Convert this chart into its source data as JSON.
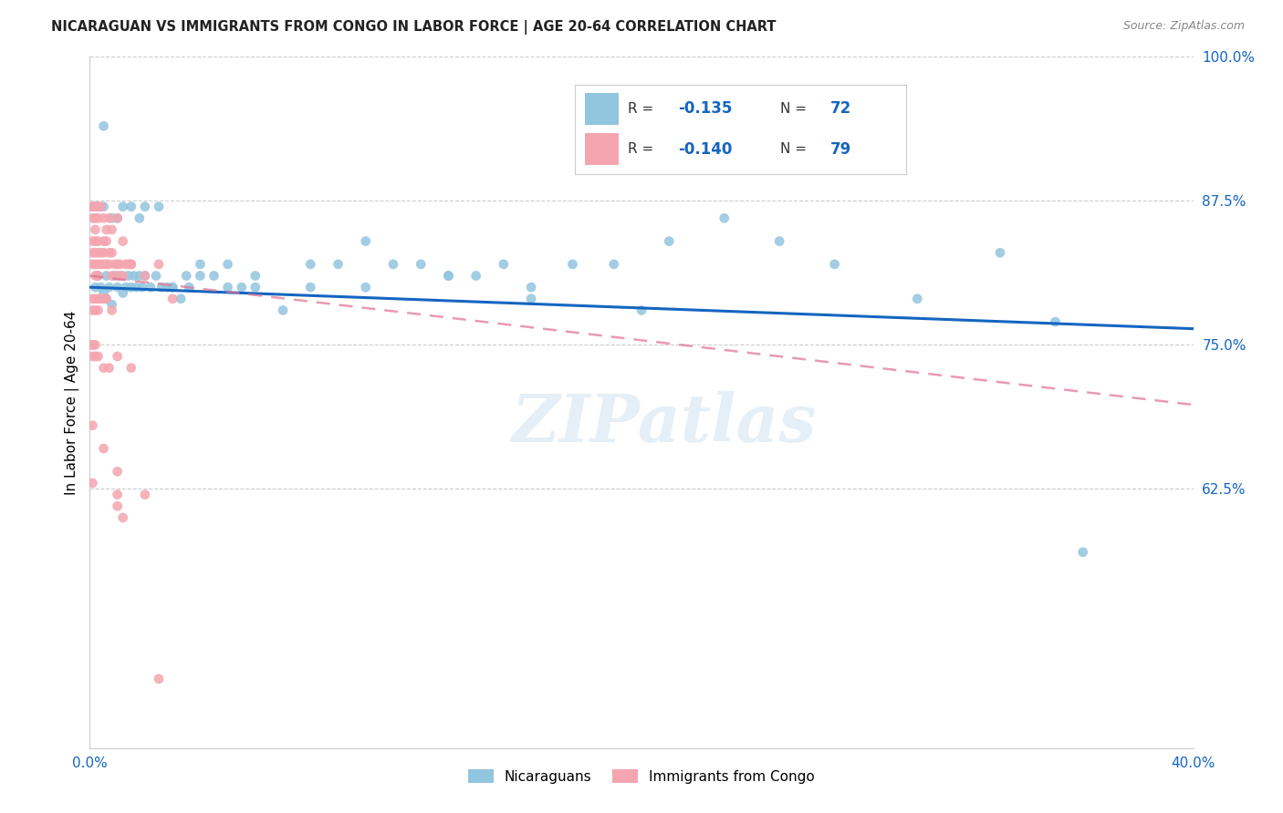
{
  "title": "NICARAGUAN VS IMMIGRANTS FROM CONGO IN LABOR FORCE | AGE 20-64 CORRELATION CHART",
  "source": "Source: ZipAtlas.com",
  "ylabel": "In Labor Force | Age 20-64",
  "xlim": [
    0.0,
    0.4
  ],
  "ylim": [
    0.4,
    1.0
  ],
  "blue_color": "#92c5de",
  "pink_color": "#f4a5b0",
  "trend_blue": "#1565c0",
  "trend_pink": "#e07090",
  "legend_R1": "-0.135",
  "legend_N1": "72",
  "legend_R2": "-0.140",
  "legend_N2": "79",
  "watermark": "ZIPatlas",
  "blue_trend_x": [
    0.0,
    0.4
  ],
  "blue_trend_y": [
    0.8,
    0.764
  ],
  "pink_trend_x": [
    0.0,
    0.4
  ],
  "pink_trend_y": [
    0.81,
    0.698
  ],
  "blue_x": [
    0.002,
    0.003,
    0.004,
    0.005,
    0.006,
    0.006,
    0.007,
    0.008,
    0.009,
    0.01,
    0.011,
    0.012,
    0.013,
    0.014,
    0.015,
    0.016,
    0.017,
    0.018,
    0.019,
    0.02,
    0.022,
    0.024,
    0.026,
    0.028,
    0.03,
    0.033,
    0.036,
    0.04,
    0.045,
    0.05,
    0.055,
    0.06,
    0.07,
    0.08,
    0.09,
    0.1,
    0.11,
    0.12,
    0.13,
    0.14,
    0.15,
    0.16,
    0.175,
    0.19,
    0.21,
    0.23,
    0.25,
    0.27,
    0.3,
    0.33,
    0.003,
    0.005,
    0.008,
    0.01,
    0.012,
    0.015,
    0.018,
    0.02,
    0.025,
    0.03,
    0.035,
    0.04,
    0.05,
    0.06,
    0.08,
    0.1,
    0.13,
    0.16,
    0.2,
    0.35,
    0.005,
    0.36
  ],
  "blue_y": [
    0.8,
    0.81,
    0.8,
    0.795,
    0.81,
    0.79,
    0.8,
    0.785,
    0.81,
    0.8,
    0.81,
    0.795,
    0.8,
    0.81,
    0.8,
    0.81,
    0.8,
    0.81,
    0.8,
    0.81,
    0.8,
    0.81,
    0.8,
    0.8,
    0.8,
    0.79,
    0.8,
    0.81,
    0.81,
    0.82,
    0.8,
    0.81,
    0.78,
    0.82,
    0.82,
    0.84,
    0.82,
    0.82,
    0.81,
    0.81,
    0.82,
    0.79,
    0.82,
    0.82,
    0.84,
    0.86,
    0.84,
    0.82,
    0.79,
    0.83,
    0.87,
    0.87,
    0.86,
    0.86,
    0.87,
    0.87,
    0.86,
    0.87,
    0.87,
    0.8,
    0.81,
    0.82,
    0.8,
    0.8,
    0.8,
    0.8,
    0.81,
    0.8,
    0.78,
    0.77,
    0.94,
    0.57
  ],
  "pink_x": [
    0.001,
    0.001,
    0.001,
    0.002,
    0.002,
    0.002,
    0.002,
    0.003,
    0.003,
    0.003,
    0.003,
    0.004,
    0.004,
    0.005,
    0.005,
    0.005,
    0.006,
    0.006,
    0.007,
    0.007,
    0.008,
    0.008,
    0.009,
    0.01,
    0.01,
    0.011,
    0.012,
    0.013,
    0.014,
    0.015,
    0.001,
    0.001,
    0.001,
    0.002,
    0.002,
    0.002,
    0.002,
    0.003,
    0.003,
    0.004,
    0.005,
    0.006,
    0.007,
    0.008,
    0.01,
    0.012,
    0.015,
    0.02,
    0.025,
    0.03,
    0.001,
    0.001,
    0.002,
    0.002,
    0.003,
    0.003,
    0.004,
    0.005,
    0.006,
    0.008,
    0.001,
    0.001,
    0.001,
    0.002,
    0.002,
    0.003,
    0.005,
    0.007,
    0.01,
    0.015,
    0.001,
    0.005,
    0.001,
    0.01,
    0.01,
    0.01,
    0.012,
    0.02,
    0.025
  ],
  "pink_y": [
    0.83,
    0.82,
    0.84,
    0.84,
    0.83,
    0.82,
    0.81,
    0.84,
    0.83,
    0.82,
    0.81,
    0.83,
    0.82,
    0.84,
    0.83,
    0.82,
    0.84,
    0.82,
    0.83,
    0.82,
    0.83,
    0.81,
    0.82,
    0.82,
    0.81,
    0.82,
    0.81,
    0.82,
    0.82,
    0.82,
    0.87,
    0.86,
    0.87,
    0.87,
    0.86,
    0.85,
    0.87,
    0.87,
    0.86,
    0.87,
    0.86,
    0.85,
    0.86,
    0.85,
    0.86,
    0.84,
    0.82,
    0.81,
    0.82,
    0.79,
    0.79,
    0.78,
    0.79,
    0.78,
    0.79,
    0.78,
    0.79,
    0.79,
    0.79,
    0.78,
    0.75,
    0.74,
    0.75,
    0.74,
    0.75,
    0.74,
    0.73,
    0.73,
    0.74,
    0.73,
    0.68,
    0.66,
    0.63,
    0.64,
    0.62,
    0.61,
    0.6,
    0.62,
    0.46
  ]
}
